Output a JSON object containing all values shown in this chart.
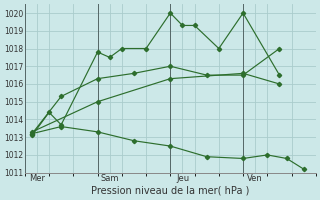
{
  "title": "Pression niveau de la mer( hPa )",
  "background_color": "#cce8e8",
  "grid_color": "#aacccc",
  "line_color": "#2d6e2d",
  "ylim": [
    1011,
    1020.5
  ],
  "yticks": [
    1011,
    1012,
    1013,
    1014,
    1015,
    1016,
    1017,
    1018,
    1019,
    1020
  ],
  "xtick_labels": [
    "Mer",
    "Sam",
    "Jeu",
    "Ven"
  ],
  "xtick_positions": [
    0.5,
    3.5,
    6.5,
    9.5
  ],
  "vline_positions": [
    0,
    3,
    6,
    9,
    12
  ],
  "xlim": [
    0,
    12
  ],
  "series": [
    {
      "x": [
        0.3,
        1.0,
        1.5,
        3.0,
        3.5,
        4.0,
        5.0,
        6.0,
        6.5,
        7.0,
        8.0,
        9.0,
        10.5
      ],
      "y": [
        1013.1,
        1014.4,
        1013.7,
        1017.8,
        1017.5,
        1018.0,
        1018.0,
        1020.0,
        1019.3,
        1019.3,
        1018.0,
        1020.0,
        1016.5
      ]
    },
    {
      "x": [
        0.3,
        1.5,
        3.0,
        4.5,
        6.0,
        7.5,
        9.0,
        10.5
      ],
      "y": [
        1013.2,
        1015.3,
        1016.3,
        1016.6,
        1017.0,
        1016.5,
        1016.5,
        1018.0
      ]
    },
    {
      "x": [
        0.3,
        3.0,
        6.0,
        9.0,
        10.5
      ],
      "y": [
        1013.3,
        1015.0,
        1016.3,
        1016.6,
        1016.0
      ]
    },
    {
      "x": [
        0.3,
        1.5,
        3.0,
        4.5,
        6.0,
        7.5,
        9.0,
        10.0,
        10.8,
        11.5
      ],
      "y": [
        1013.2,
        1013.6,
        1013.3,
        1012.8,
        1012.5,
        1011.9,
        1011.8,
        1012.0,
        1011.8,
        1011.2
      ]
    }
  ]
}
